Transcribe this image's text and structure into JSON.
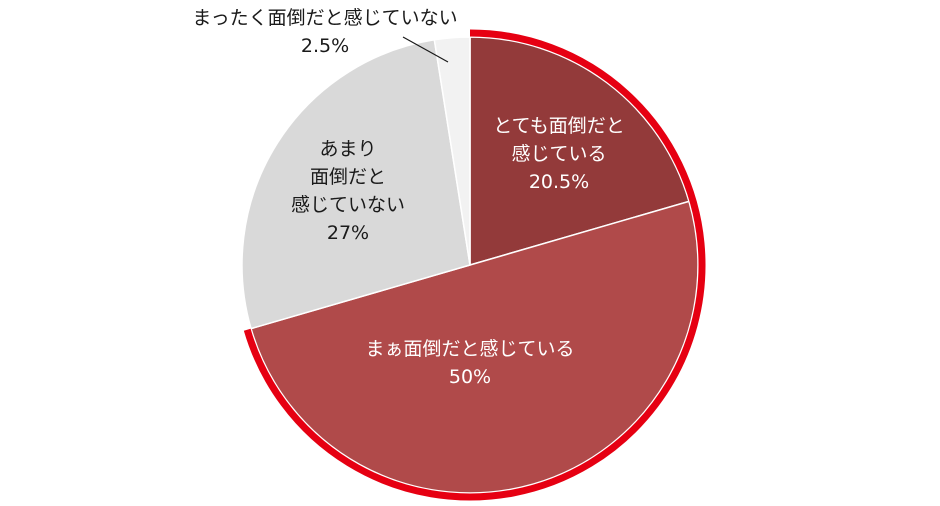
{
  "chart_data": {
    "type": "pie",
    "start_angle_deg": 0,
    "direction": "clockwise",
    "slices": [
      {
        "label_lines": [
          "とても面倒だと",
          "感じている"
        ],
        "value": 20.5,
        "value_label": "20.5%",
        "color": "#933a3a"
      },
      {
        "label_lines": [
          "まぁ面倒だと感じている"
        ],
        "value": 50,
        "value_label": "50%",
        "color": "#b04a4a"
      },
      {
        "label_lines": [
          "あまり",
          "面倒だと",
          "感じていない"
        ],
        "value": 27,
        "value_label": "27%",
        "color": "#d9d9d9"
      },
      {
        "label_lines": [
          "まったく面倒だと感じていない"
        ],
        "value": 2.5,
        "value_label": "2.5%",
        "color": "#f2f2f2"
      }
    ],
    "highlight_arc": {
      "color": "#e60012",
      "covers": "とても面倒だと感じている + まぁ面倒だと感じている"
    }
  }
}
